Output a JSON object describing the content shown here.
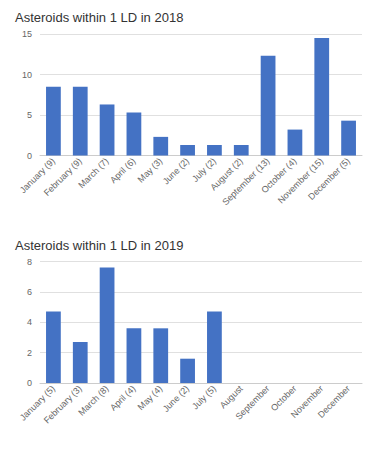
{
  "chart_data": [
    {
      "type": "bar",
      "title": "Asteroids within 1 LD in 2018",
      "categories": [
        "January (9)",
        "February (9)",
        "March (7)",
        "April (6)",
        "May (3)",
        "June (2)",
        "July (2)",
        "August (2)",
        "September (13)",
        "October (4)",
        "November (15)",
        "December (5)"
      ],
      "values": [
        8.5,
        8.5,
        6.3,
        5.3,
        2.3,
        1.3,
        1.3,
        1.3,
        12.3,
        3.2,
        14.5,
        4.3
      ],
      "color": "#4472c4",
      "ylim": [
        0,
        15
      ],
      "yticks": [
        0,
        5,
        10,
        15
      ],
      "grid": true
    },
    {
      "type": "bar",
      "title": "Asteroids within 1 LD in 2019",
      "categories": [
        "January (5)",
        "February (3)",
        "March (8)",
        "April (4)",
        "May (4)",
        "June (2)",
        "July (5)",
        "August",
        "September",
        "October",
        "November",
        "December"
      ],
      "values": [
        4.7,
        2.7,
        7.6,
        3.6,
        3.6,
        1.6,
        4.7,
        0,
        0,
        0,
        0,
        0
      ],
      "color": "#4472c4",
      "ylim": [
        0,
        8
      ],
      "yticks": [
        0,
        2,
        4,
        6,
        8
      ],
      "grid": true
    }
  ]
}
